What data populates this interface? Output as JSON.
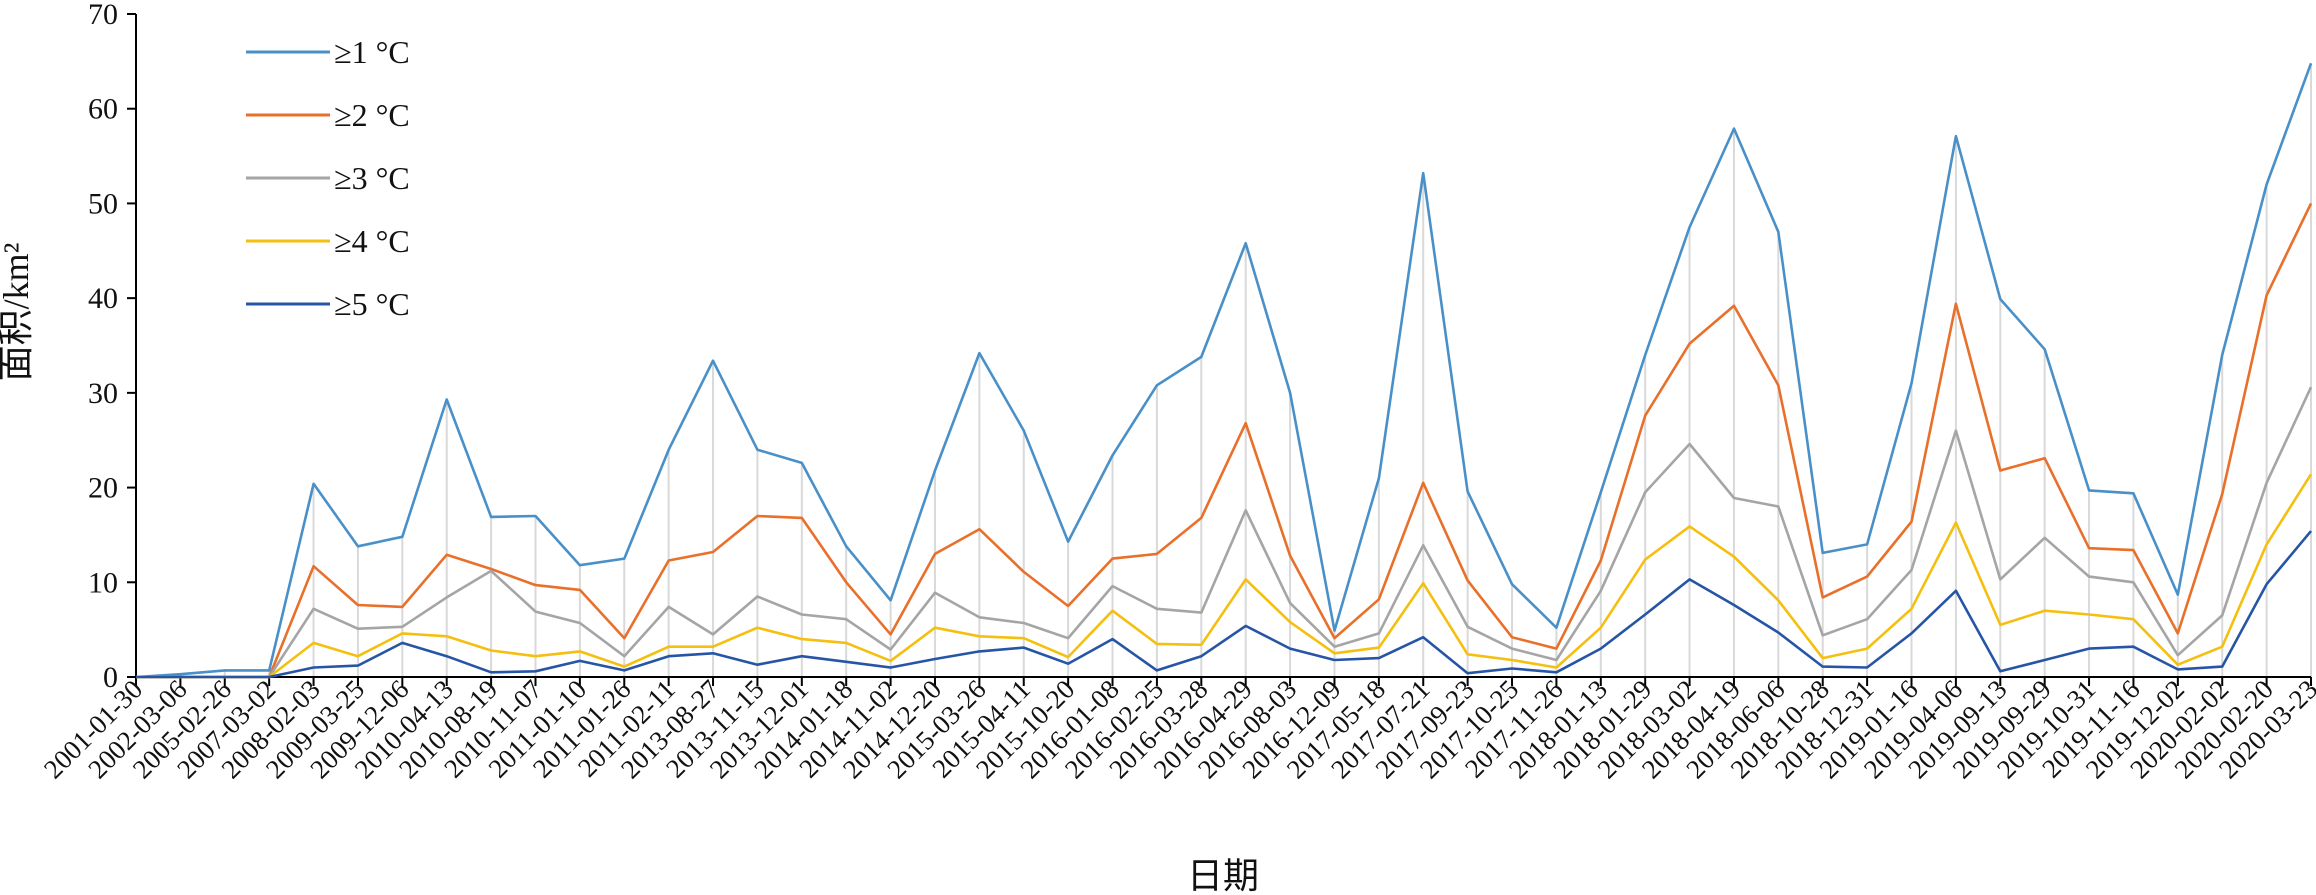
{
  "chart_data": {
    "type": "line",
    "xlabel": "日期",
    "ylabel": "面积/km²",
    "ylim": [
      0,
      70
    ],
    "yticks": [
      0,
      10,
      20,
      30,
      40,
      50,
      60,
      70
    ],
    "grid": "vertical drop lines at each date",
    "legend_position": "top-left",
    "categories": [
      "2001-01-30",
      "2002-03-06",
      "2005-02-26",
      "2007-03-02",
      "2008-02-03",
      "2009-03-25",
      "2009-12-06",
      "2010-04-13",
      "2010-08-19",
      "2010-11-07",
      "2011-01-10",
      "2011-01-26",
      "2011-02-11",
      "2013-08-27",
      "2013-11-15",
      "2013-12-01",
      "2014-01-18",
      "2014-11-02",
      "2014-12-20",
      "2015-03-26",
      "2015-04-11",
      "2015-10-20",
      "2016-01-08",
      "2016-02-25",
      "2016-03-28",
      "2016-04-29",
      "2016-08-03",
      "2016-12-09",
      "2017-05-18",
      "2017-07-21",
      "2017-09-23",
      "2017-10-25",
      "2017-11-26",
      "2018-01-13",
      "2018-01-29",
      "2018-03-02",
      "2018-04-19",
      "2018-06-06",
      "2018-10-28",
      "2018-12-31",
      "2019-01-16",
      "2019-04-06",
      "2019-09-13",
      "2019-09-29",
      "2019-10-31",
      "2019-11-16",
      "2019-12-02",
      "2020-02-02",
      "2020-02-20",
      "2020-03-23"
    ],
    "series": [
      {
        "name": "≥1 °C",
        "color": "#4a90c8",
        "values": [
          0,
          0.3,
          0.7,
          0.7,
          20.4,
          13.8,
          14.8,
          29.3,
          16.9,
          17.0,
          11.8,
          12.5,
          24.0,
          33.4,
          24.0,
          22.6,
          13.8,
          8.1,
          21.8,
          34.2,
          26.0,
          14.3,
          23.4,
          30.8,
          33.8,
          45.8,
          30.0,
          4.9,
          21.0,
          53.2,
          19.6,
          9.8,
          5.2,
          19.5,
          34.0,
          47.5,
          57.9,
          47.0,
          13.1,
          14.0,
          31.0,
          57.1,
          39.9,
          34.6,
          19.7,
          19.4,
          8.7,
          34.0,
          52.0,
          64.8
        ]
      },
      {
        "name": "≥2 °C",
        "color": "#e8702a",
        "values": [
          0,
          0,
          0,
          0,
          11.7,
          7.6,
          7.4,
          12.9,
          11.4,
          9.7,
          9.2,
          4.1,
          12.3,
          13.2,
          17.0,
          16.8,
          10.0,
          4.5,
          13.0,
          15.6,
          11.1,
          7.5,
          12.5,
          13.0,
          16.8,
          26.8,
          12.8,
          4.1,
          8.2,
          20.5,
          10.2,
          4.2,
          3.0,
          12.3,
          27.6,
          35.2,
          39.2,
          30.8,
          8.4,
          10.6,
          16.4,
          39.4,
          21.8,
          23.1,
          13.6,
          13.4,
          4.6,
          19.3,
          40.3,
          50.0
        ]
      },
      {
        "name": "≥3 °C",
        "color": "#a5a5a5",
        "values": [
          0,
          0,
          0,
          0,
          7.2,
          5.1,
          5.3,
          8.4,
          11.2,
          6.9,
          5.7,
          2.2,
          7.4,
          4.5,
          8.5,
          6.6,
          6.1,
          2.9,
          8.9,
          6.3,
          5.7,
          4.1,
          9.6,
          7.2,
          6.8,
          17.6,
          7.8,
          3.2,
          4.6,
          13.9,
          5.3,
          3.0,
          1.8,
          9.1,
          19.5,
          24.6,
          18.9,
          18.0,
          4.4,
          6.1,
          11.3,
          26.0,
          10.3,
          14.7,
          10.6,
          10.0,
          2.3,
          6.5,
          20.5,
          30.6
        ]
      },
      {
        "name": "≥4 °C",
        "color": "#f5bf10",
        "values": [
          0,
          0,
          0,
          0,
          3.6,
          2.2,
          4.6,
          4.3,
          2.8,
          2.2,
          2.7,
          1.1,
          3.2,
          3.2,
          5.2,
          4.0,
          3.6,
          1.7,
          5.2,
          4.3,
          4.1,
          2.1,
          7.0,
          3.5,
          3.4,
          10.3,
          5.8,
          2.5,
          3.1,
          9.9,
          2.4,
          1.8,
          1.0,
          5.2,
          12.4,
          15.9,
          12.7,
          8.1,
          2.0,
          3.0,
          7.2,
          16.3,
          5.5,
          7.0,
          6.6,
          6.1,
          1.3,
          3.2,
          14.0,
          21.4
        ]
      },
      {
        "name": "≥5 °C",
        "color": "#2755a5",
        "values": [
          0,
          0,
          0,
          0,
          1.0,
          1.2,
          3.6,
          2.2,
          0.5,
          0.6,
          1.7,
          0.7,
          2.2,
          2.5,
          1.3,
          2.2,
          1.6,
          1.0,
          1.9,
          2.7,
          3.1,
          1.4,
          4.0,
          0.7,
          2.2,
          5.4,
          3.0,
          1.8,
          2.0,
          4.2,
          0.4,
          0.9,
          0.5,
          3.0,
          6.6,
          10.3,
          7.6,
          4.7,
          1.1,
          1.0,
          4.6,
          9.1,
          0.6,
          1.8,
          3.0,
          3.2,
          0.8,
          1.1,
          9.8,
          15.4
        ]
      }
    ]
  }
}
